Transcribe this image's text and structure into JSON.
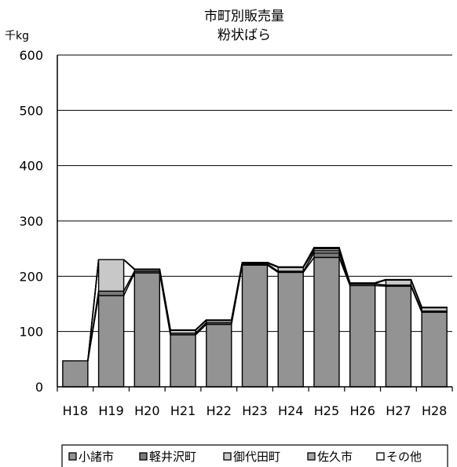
{
  "chart_data": {
    "type": "bar",
    "stacked": true,
    "title": "市町別販売量",
    "subtitle": "粉状ばら",
    "ylabel": "千kg",
    "xlabel": "",
    "ylim": [
      0,
      600
    ],
    "yticks": [
      0,
      100,
      200,
      300,
      400,
      500,
      600
    ],
    "grid": true,
    "legend_position": "bottom",
    "series_lines": true,
    "categories": [
      "H18",
      "H19",
      "H20",
      "H21",
      "H22",
      "H23",
      "H24",
      "H25",
      "H26",
      "H27",
      "H28"
    ],
    "series": [
      {
        "name": "小諸市",
        "color": "#939393",
        "values": [
          47,
          165,
          206,
          94,
          113,
          220,
          207,
          234,
          183,
          182,
          135
        ]
      },
      {
        "name": "軽井沢町",
        "color": "#7a7a7a",
        "values": [
          0,
          8,
          3,
          3,
          3,
          2,
          2,
          8,
          3,
          2,
          2
        ]
      },
      {
        "name": "御代田町",
        "color": "#c8c8c8",
        "values": [
          0,
          57,
          3,
          5,
          4,
          2,
          7,
          4,
          1,
          9,
          6
        ]
      },
      {
        "name": "佐久市",
        "color": "#a6a6a6",
        "values": [
          0,
          0,
          1,
          1,
          1,
          1,
          1,
          4,
          1,
          1,
          1
        ]
      },
      {
        "name": "その他",
        "color": "#ffffff",
        "values": [
          0,
          0,
          0,
          0,
          0,
          0,
          0,
          2,
          0,
          0,
          0
        ]
      }
    ]
  }
}
